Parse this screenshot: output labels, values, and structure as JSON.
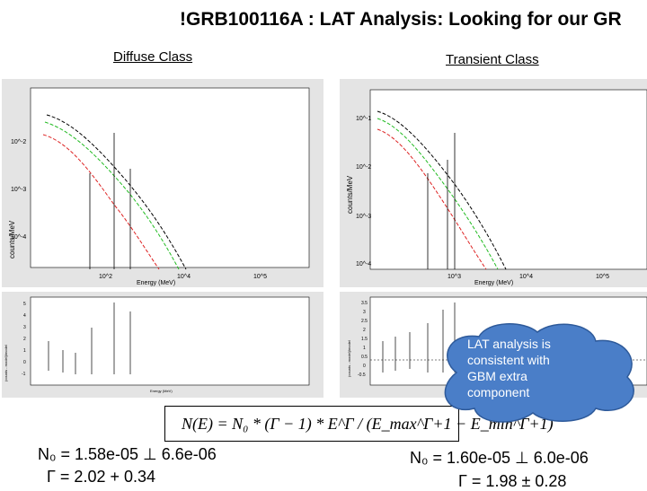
{
  "title": {
    "marker": "!",
    "text": "GRB100116A :  LAT Analysis: Looking for our GR"
  },
  "left_panel": {
    "label": "Diffuse Class",
    "ylabel": "counts/MeV",
    "xlabel": "Energy (MeV)",
    "yticks": [
      "10^-2",
      "10^-3",
      "10^-4"
    ],
    "xticks": [
      "10^2",
      "10^4",
      "10^5"
    ],
    "resid_yticks": [
      "5",
      "4",
      "3",
      "2",
      "1",
      "0",
      "-1"
    ],
    "resid_xlabel": "Energy (MeV)",
    "resid_ylabel": "(counts - model)/model"
  },
  "right_panel": {
    "label": "Transient Class",
    "ylabel": "counts/MeV",
    "xlabel": "Energy (MeV)",
    "yticks": [
      "10^-1",
      "10^-2",
      "10^-3",
      "10^-4"
    ],
    "xticks": [
      "10^3",
      "10^4",
      "10^5"
    ],
    "resid_yticks": [
      "3.5",
      "3",
      "2.5",
      "2",
      "1.5",
      "1",
      "0.5",
      "0",
      "-0.5"
    ],
    "resid_ylabel": "(counts - model)/model"
  },
  "formula": "N(E) = N₀ * (Γ − 1) * E^Γ / (E_max^Γ+1 − E_min^Γ+1)",
  "params_left": {
    "n0": "N₀ = 1.58e-05  ⊥  6.6e-06",
    "gamma": "Γ   = 2.02  + 0.34"
  },
  "params_right": {
    "n0": "N₀ = 1.60e-05  ⊥  6.0e-06",
    "gamma": "Γ   = 1.98  ± 0.28"
  },
  "callout": {
    "text": "LAT analysis is consistent with GBM extra component",
    "color": "#4a7ec8"
  },
  "colors": {
    "panel_bg": "#e4e4e4",
    "curve_total": "#000000",
    "curve_green": "#22bb22",
    "curve_red": "#dd2222",
    "curve_blue": "#2244cc"
  }
}
